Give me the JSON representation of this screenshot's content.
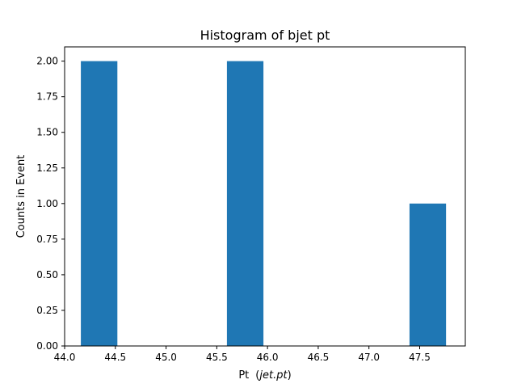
{
  "chart_data": {
    "type": "bar",
    "title": "Histogram of bjet pt",
    "xlabel_prefix": "Pt",
    "xlabel_math": "jet.pt",
    "ylabel": "Counts in Event",
    "xlim": [
      44.0,
      47.95
    ],
    "ylim": [
      0.0,
      2.1
    ],
    "xticks": [
      "44.0",
      "44.5",
      "45.0",
      "45.5",
      "46.0",
      "46.5",
      "47.0",
      "47.5"
    ],
    "yticks": [
      "0.00",
      "0.25",
      "0.50",
      "0.75",
      "1.00",
      "1.25",
      "1.50",
      "1.75",
      "2.00"
    ],
    "bins": [
      {
        "x0": 44.16,
        "x1": 44.52,
        "count": 2
      },
      {
        "x0": 44.52,
        "x1": 44.88,
        "count": 0
      },
      {
        "x0": 44.88,
        "x1": 45.24,
        "count": 0
      },
      {
        "x0": 45.24,
        "x1": 45.6,
        "count": 0
      },
      {
        "x0": 45.6,
        "x1": 45.96,
        "count": 2
      },
      {
        "x0": 45.96,
        "x1": 46.32,
        "count": 0
      },
      {
        "x0": 46.32,
        "x1": 46.68,
        "count": 0
      },
      {
        "x0": 46.68,
        "x1": 47.04,
        "count": 0
      },
      {
        "x0": 47.04,
        "x1": 47.4,
        "count": 0
      },
      {
        "x0": 47.4,
        "x1": 47.76,
        "count": 1
      }
    ],
    "bar_color": "#1f77b4",
    "grid": false,
    "legend": "none"
  }
}
